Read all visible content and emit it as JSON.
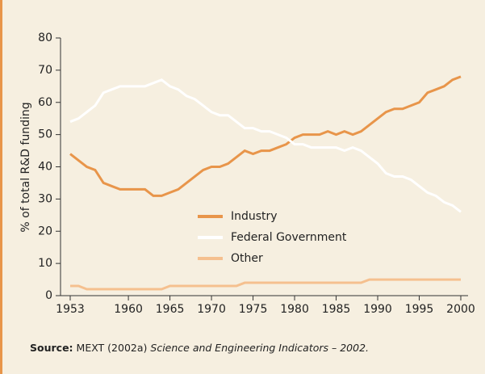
{
  "chart_data": {
    "type": "line",
    "y_label": "% of total R&D funding",
    "x": [
      1953,
      1954,
      1955,
      1956,
      1957,
      1958,
      1959,
      1960,
      1961,
      1962,
      1963,
      1964,
      1965,
      1966,
      1967,
      1968,
      1969,
      1970,
      1971,
      1972,
      1973,
      1974,
      1975,
      1976,
      1977,
      1978,
      1979,
      1980,
      1981,
      1982,
      1983,
      1984,
      1985,
      1986,
      1987,
      1988,
      1989,
      1990,
      1991,
      1992,
      1993,
      1994,
      1995,
      1996,
      1997,
      1998,
      1999,
      2000
    ],
    "series": [
      {
        "name": "Industry",
        "color": "#e8954a",
        "values": [
          44,
          42,
          40,
          39,
          35,
          34,
          33,
          33,
          33,
          33,
          31,
          31,
          32,
          33,
          35,
          37,
          39,
          40,
          40,
          41,
          43,
          45,
          44,
          45,
          45,
          46,
          47,
          49,
          50,
          50,
          50,
          51,
          50,
          51,
          50,
          51,
          53,
          55,
          57,
          58,
          58,
          59,
          60,
          63,
          64,
          65,
          67,
          68
        ]
      },
      {
        "name": "Federal Government",
        "color": "#ffffff",
        "values": [
          54,
          55,
          57,
          59,
          63,
          64,
          65,
          65,
          65,
          65,
          66,
          67,
          65,
          64,
          62,
          61,
          59,
          57,
          56,
          56,
          54,
          52,
          52,
          51,
          51,
          50,
          49,
          47,
          47,
          46,
          46,
          46,
          46,
          45,
          46,
          45,
          43,
          41,
          38,
          37,
          37,
          36,
          34,
          32,
          31,
          29,
          28,
          26
        ]
      },
      {
        "name": "Other",
        "color": "#f5c08f",
        "values": [
          3,
          3,
          2,
          2,
          2,
          2,
          2,
          2,
          2,
          2,
          2,
          2,
          3,
          3,
          3,
          3,
          3,
          3,
          3,
          3,
          3,
          4,
          4,
          4,
          4,
          4,
          4,
          4,
          4,
          4,
          4,
          4,
          4,
          4,
          4,
          4,
          5,
          5,
          5,
          5,
          5,
          5,
          5,
          5,
          5,
          5,
          5,
          5
        ]
      }
    ],
    "xlim": [
      1953,
      2000
    ],
    "xticks": [
      1953,
      1960,
      1965,
      1970,
      1975,
      1980,
      1985,
      1990,
      1995,
      2000
    ],
    "ylim": [
      0,
      80
    ],
    "yticks": [
      0,
      10,
      20,
      30,
      40,
      50,
      60,
      70,
      80
    ],
    "legend": "center"
  },
  "source": {
    "label": "Source:",
    "text": "MEXT (2002a)",
    "title": "Science and Engineering Indicators – 2002."
  }
}
